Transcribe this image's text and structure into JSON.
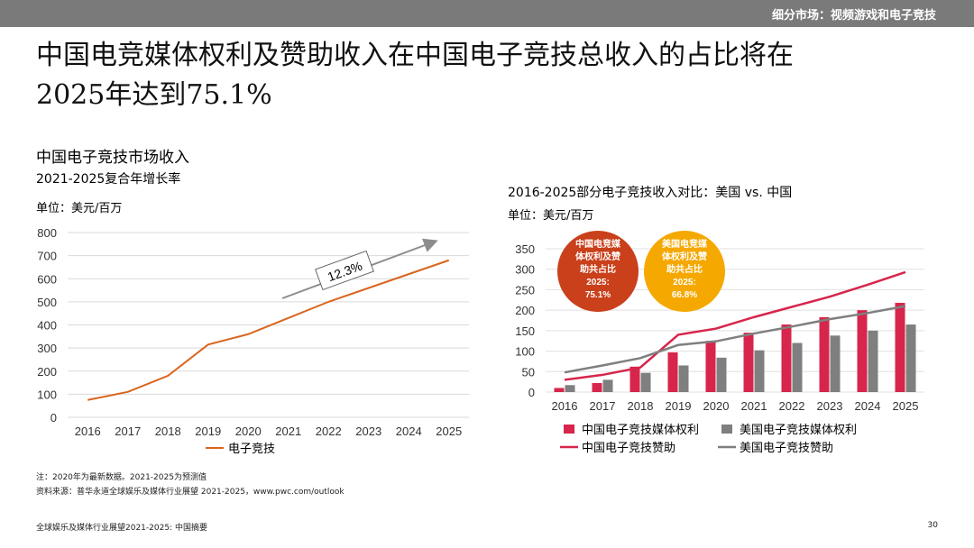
{
  "header": {
    "section": "细分市场：视频游戏和电子竞技"
  },
  "title": {
    "line1": "中国电竞媒体权利及赞助收入在中国电子竞技总收入的占比将在",
    "line2": "2025年达到75.1%"
  },
  "left_chart": {
    "heading": "中国电子竞技市场收入",
    "subheading": "2021-2025复合年增长率",
    "unit": "单位：美元/百万",
    "cagr_label": "12.3%"
  },
  "right_chart": {
    "heading": "2016-2025部分电子竞技收入对比：美国  vs. 中国",
    "unit": "单位：美元/百万",
    "bubble_cn": {
      "lines": [
        "中国电竞媒",
        "体权利及赞",
        "助共占比",
        "2025:",
        "75.1%"
      ]
    },
    "bubble_us": {
      "lines": [
        "美国电竞媒",
        "体权利及赞",
        "助共占比",
        "2025:",
        "66.8%"
      ]
    }
  },
  "notes": {
    "note": "注：2020年为最新数据。2021-2025为预测值",
    "source": "资料来源：普华永道全球娱乐及媒体行业展望 2021-2025，www.pwc.com/outlook"
  },
  "footer": {
    "left": "全球娱乐及媒体行业展望2021-2025: 中国摘要",
    "page": "30"
  },
  "colors": {
    "orange": "#d9651d",
    "red": "#d7254b",
    "gray": "#7f7f7f",
    "bubble_cn": "#c9401b",
    "bubble_us": "#f5a800"
  },
  "chart_data": [
    {
      "type": "line",
      "title": "中国电子竞技市场收入",
      "x": [
        "2016",
        "2017",
        "2018",
        "2019",
        "2020",
        "2021",
        "2022",
        "2023",
        "2024",
        "2025"
      ],
      "series": [
        {
          "name": "电子竞技",
          "values": [
            75,
            110,
            180,
            315,
            360,
            430,
            500,
            560,
            620,
            680
          ]
        }
      ],
      "ylim": [
        0,
        800
      ],
      "yticks": [
        0,
        100,
        200,
        300,
        400,
        500,
        600,
        700,
        800
      ],
      "grid": true,
      "legend": "bottom"
    },
    {
      "type": "bar",
      "title": "2016-2025部分电子竞技收入对比：美国  vs. 中国",
      "categories": [
        "2016",
        "2017",
        "2018",
        "2019",
        "2020",
        "2021",
        "2022",
        "2023",
        "2024",
        "2025"
      ],
      "bar_series": [
        {
          "name": "中国电子竞技媒体权利",
          "values": [
            10,
            22,
            62,
            97,
            125,
            145,
            165,
            183,
            200,
            218
          ]
        },
        {
          "name": "美国电子竞技媒体权利",
          "values": [
            17,
            30,
            47,
            65,
            84,
            102,
            120,
            138,
            150,
            165
          ]
        }
      ],
      "line_series": [
        {
          "name": "中国电子竞技赞助",
          "values": [
            30,
            42,
            60,
            140,
            155,
            183,
            208,
            233,
            262,
            293
          ]
        },
        {
          "name": "美国电子竞技赞助",
          "values": [
            48,
            65,
            83,
            115,
            124,
            143,
            160,
            178,
            193,
            210
          ]
        }
      ],
      "ylim": [
        0,
        350
      ],
      "yticks": [
        0,
        50,
        100,
        150,
        200,
        250,
        300,
        350
      ],
      "grid": true,
      "legend": "bottom"
    }
  ]
}
